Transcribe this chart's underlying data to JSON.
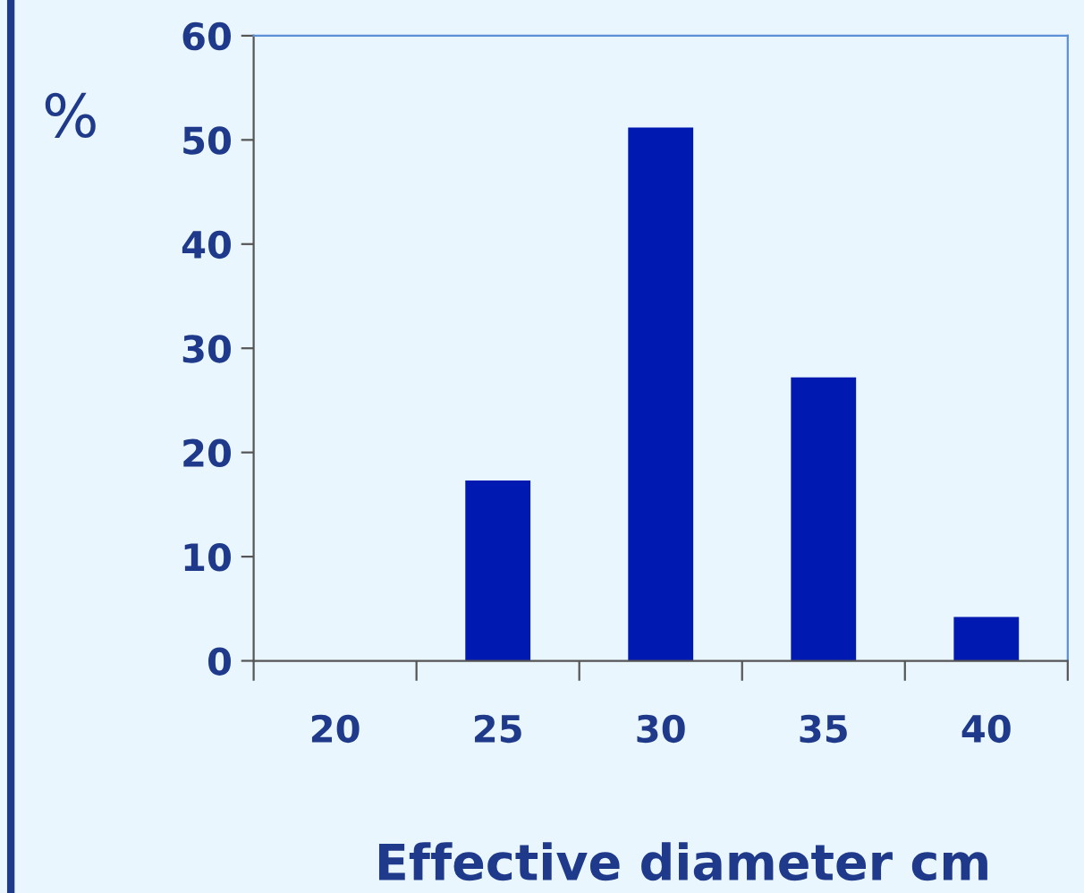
{
  "chart_data": {
    "type": "bar",
    "xlabel": "Effective diameter cm",
    "ylabel": "%",
    "categories": [
      "20",
      "25",
      "30",
      "35",
      "40"
    ],
    "values": [
      0,
      17.3,
      51.2,
      27.2,
      4.2
    ],
    "color": "#0019b0",
    "ylim": [
      0,
      60
    ],
    "yticks": [
      0,
      10,
      20,
      30,
      40,
      50,
      60
    ],
    "grid": false,
    "legend": false
  }
}
